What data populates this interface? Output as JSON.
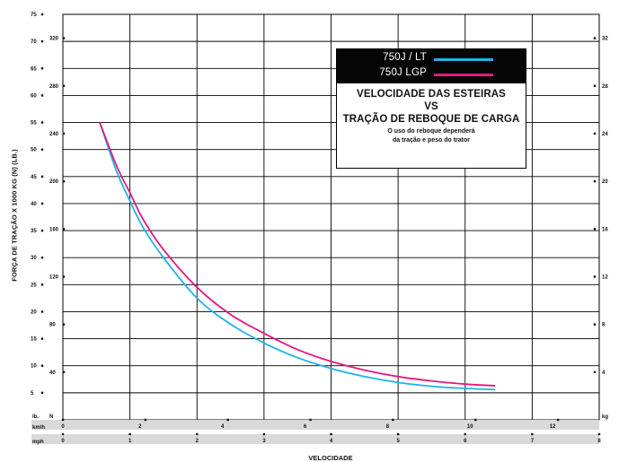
{
  "chart_data": {
    "type": "line",
    "ylabel": "FORÇA DE TRAÇÃO X 1000 KG (N) (LB.)",
    "xlabel": "VELOCIDADE",
    "axes": {
      "y_lb": {
        "label": "lb.",
        "ticks": [
          5,
          10,
          15,
          20,
          25,
          30,
          35,
          40,
          45,
          50,
          55,
          60,
          65,
          70,
          75
        ]
      },
      "y_N": {
        "label": "N",
        "ticks": [
          40,
          80,
          120,
          160,
          200,
          240,
          280,
          320
        ]
      },
      "y_kg": {
        "label": "kg",
        "ticks": [
          4,
          8,
          12,
          16,
          20,
          24,
          28,
          32
        ]
      },
      "x_kmh": {
        "label": "km/h",
        "ticks": [
          0,
          2,
          4,
          6,
          8,
          10,
          12
        ]
      },
      "x_mph": {
        "label": "mph",
        "ticks": [
          0,
          1,
          2,
          3,
          4,
          5,
          6,
          7,
          8
        ]
      }
    },
    "xlim": [
      0,
      8
    ],
    "ylim": [
      0,
      75
    ],
    "grid": true,
    "series": [
      {
        "name": "750J / LT",
        "color": "#1fb3e5",
        "x": [
          0.55,
          0.8,
          1.0,
          1.2,
          1.5,
          2.0,
          2.5,
          3.0,
          3.5,
          4.0,
          4.5,
          5.0,
          5.5,
          6.0,
          6.45
        ],
        "y": [
          55,
          46,
          40.5,
          35.5,
          30,
          22.5,
          17.7,
          14.2,
          11.5,
          9.5,
          8.0,
          6.9,
          6.2,
          5.8,
          5.6
        ]
      },
      {
        "name": "750J LGP",
        "color": "#e5197e",
        "x": [
          0.55,
          0.8,
          1.0,
          1.2,
          1.5,
          2.0,
          2.5,
          3.0,
          3.5,
          4.0,
          4.5,
          5.0,
          5.5,
          6.0,
          6.45
        ],
        "y": [
          55,
          47,
          42,
          37,
          31.5,
          24.5,
          19.5,
          16.0,
          13.0,
          10.8,
          9.2,
          8.0,
          7.2,
          6.6,
          6.3
        ]
      }
    ]
  },
  "legend": {
    "series_labels": [
      "750J / LT",
      "750J LGP"
    ],
    "title_lines": [
      "VELOCIDADE DAS ESTEIRAS",
      "VS",
      "TRAÇÃO DE REBOQUE DE CARGA"
    ],
    "note_lines": [
      "O uso do reboque dependerá",
      "da tração e peso do trator"
    ]
  },
  "colors": {
    "grid": "#000000",
    "axis_band": "#d9d9d9",
    "lt": "#1fb3e5",
    "lgp": "#e5197e"
  }
}
